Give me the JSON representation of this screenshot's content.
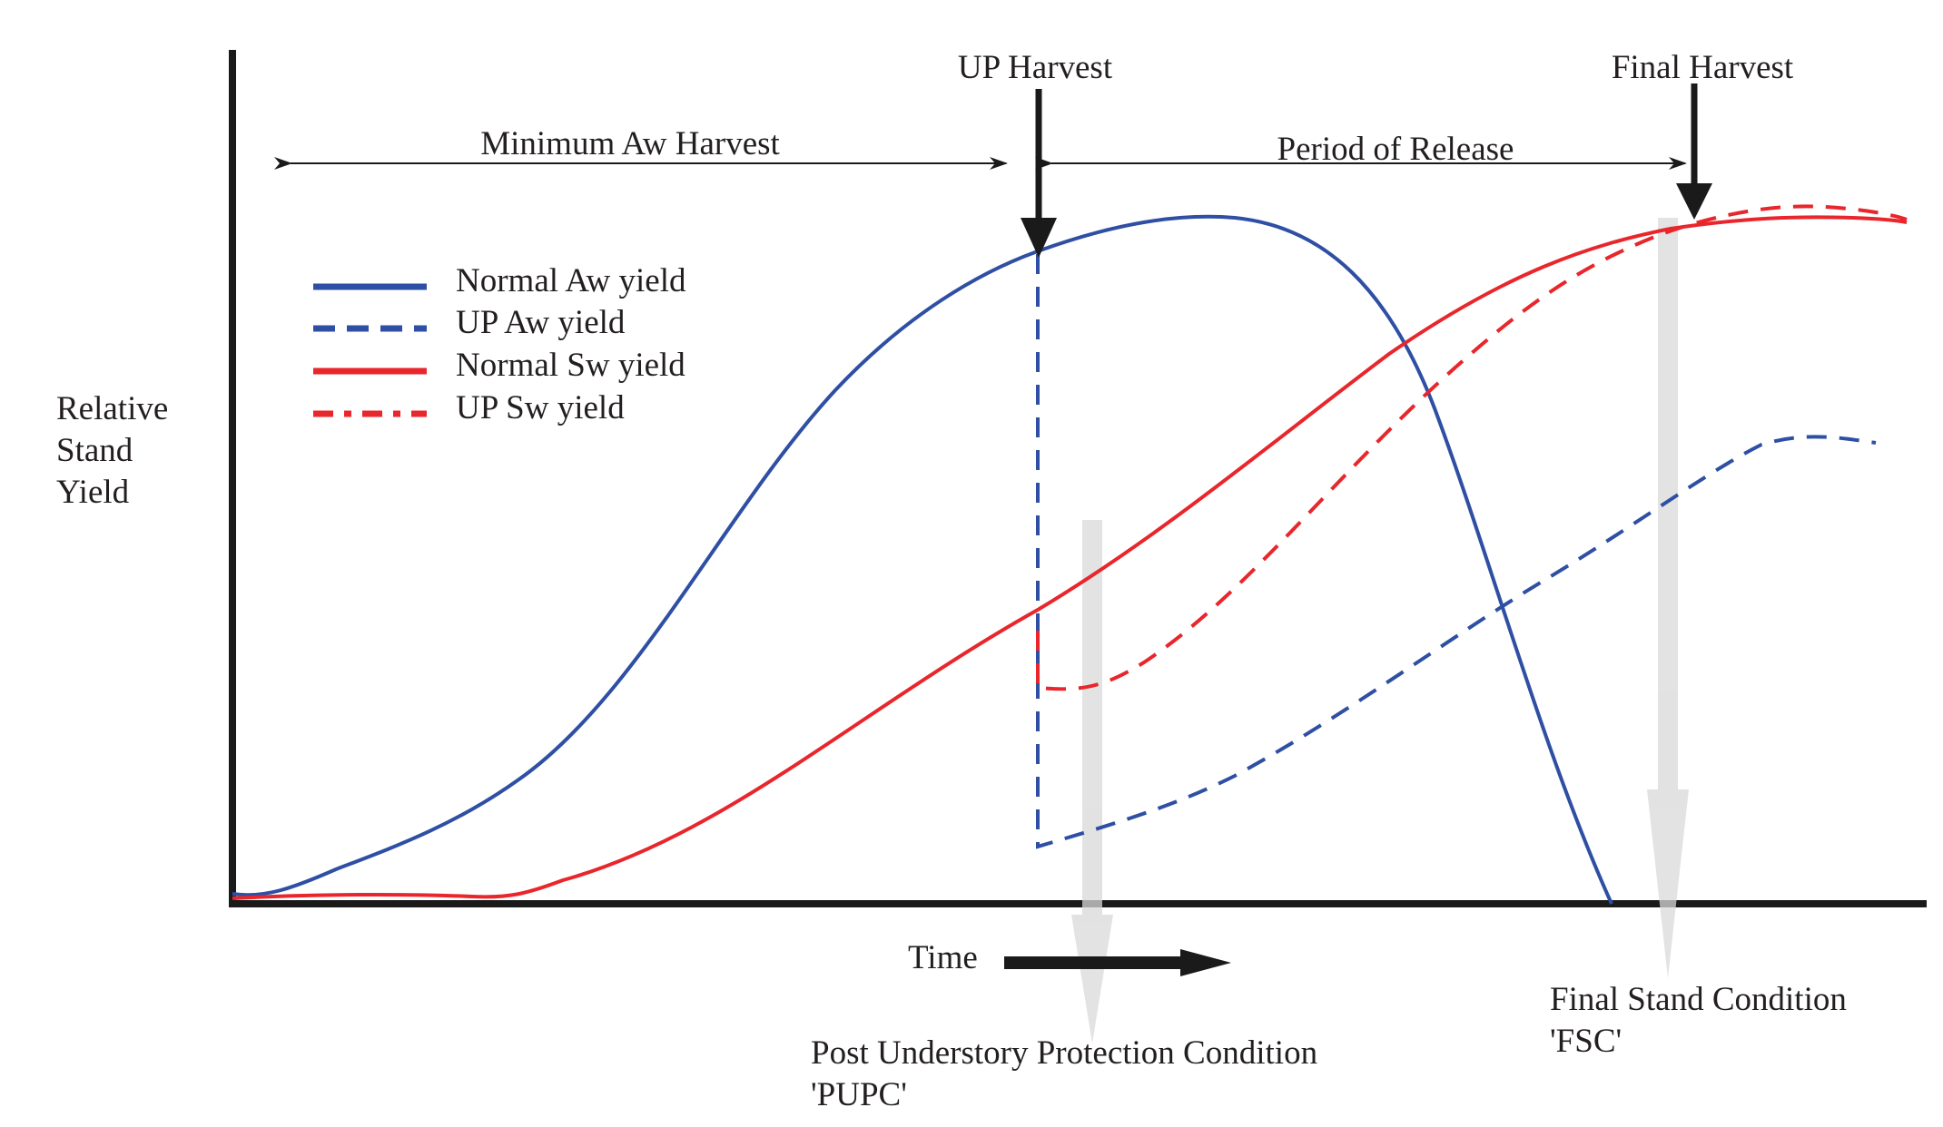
{
  "axis_y_label": [
    "Relative",
    "Stand",
    "Yield"
  ],
  "axis_x_label": "Time",
  "markers": {
    "up_harvest": "UP Harvest",
    "final_harvest": "Final Harvest"
  },
  "spans": {
    "minimum_aw_harvest": "Minimum Aw Harvest",
    "period_of_release": "Period of Release"
  },
  "legend": [
    {
      "label": "Normal Aw yield",
      "color": "#2e4fa3",
      "style": "solid"
    },
    {
      "label": "UP Aw yield",
      "color": "#2e4fa3",
      "style": "dashed"
    },
    {
      "label": "Normal Sw yield",
      "color": "#e8262b",
      "style": "solid"
    },
    {
      "label": "UP Sw yield",
      "color": "#e8262b",
      "style": "dash-dot"
    }
  ],
  "conditions": {
    "pupc": [
      "Post Understory Protection Condition",
      "'PUPC'"
    ],
    "fsc": [
      "Final Stand Condition",
      "'FSC'"
    ]
  },
  "colors": {
    "aw": "#2e4fa3",
    "sw": "#e8262b",
    "axis": "#1a1a1a",
    "condition_arrow": "#d9d9d9"
  }
}
